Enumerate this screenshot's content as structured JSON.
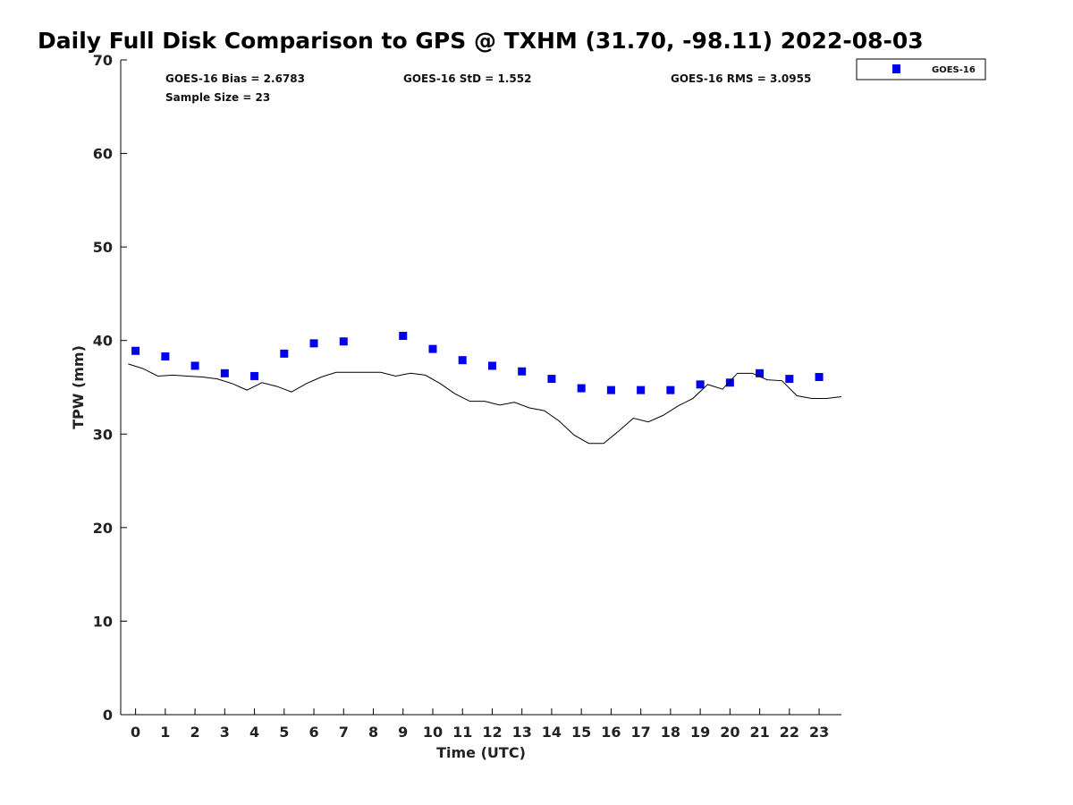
{
  "chart_data": {
    "type": "scatter",
    "title": "Daily Full Disk Comparison to GPS @ TXHM (31.70, -98.11) 2022-08-03",
    "xlabel": "Time (UTC)",
    "ylabel": "TPW (mm)",
    "xlim": [
      -0.5,
      23.75
    ],
    "ylim": [
      0,
      70
    ],
    "xticks": [
      0,
      1,
      2,
      3,
      4,
      5,
      6,
      7,
      8,
      9,
      10,
      11,
      12,
      13,
      14,
      15,
      16,
      17,
      18,
      19,
      20,
      21,
      22,
      23
    ],
    "yticks": [
      0,
      10,
      20,
      30,
      40,
      50,
      60,
      70
    ],
    "grid": false,
    "legend": {
      "position": "outside-top-right",
      "entries": [
        "GOES-16"
      ]
    },
    "stats": {
      "bias": "GOES-16 Bias = 2.6783",
      "std": "GOES-16 StD = 1.552",
      "rms": "GOES-16 RMS = 3.0955",
      "sample": "Sample Size = 23"
    },
    "series": [
      {
        "name": "GOES-16",
        "kind": "scatter",
        "color": "#0000ee",
        "x": [
          0,
          1,
          2,
          3,
          4,
          5,
          6,
          7,
          9,
          10,
          11,
          12,
          13,
          14,
          15,
          16,
          17,
          18,
          19,
          20,
          21,
          22,
          23
        ],
        "y": [
          38.9,
          38.3,
          37.3,
          36.5,
          36.2,
          38.6,
          39.7,
          39.9,
          40.5,
          39.1,
          37.9,
          37.3,
          36.7,
          35.9,
          34.9,
          34.7,
          34.7,
          34.7,
          35.3,
          35.5,
          36.5,
          35.9,
          36.1
        ]
      },
      {
        "name": "GPS",
        "kind": "line",
        "color": "#000000",
        "x": [
          -0.25,
          0.25,
          0.75,
          1.25,
          1.75,
          2.25,
          2.75,
          3.25,
          3.75,
          4.25,
          4.75,
          5.25,
          5.75,
          6.25,
          6.75,
          7.25,
          7.75,
          8.25,
          8.75,
          9.25,
          9.75,
          10.25,
          10.75,
          11.25,
          11.75,
          12.25,
          12.75,
          13.25,
          13.75,
          14.25,
          14.75,
          15.25,
          15.75,
          16.25,
          16.75,
          17.25,
          17.75,
          18.25,
          18.75,
          19.25,
          19.75,
          20.25,
          20.75,
          21.25,
          21.75,
          22.25,
          22.75,
          23.25,
          23.75
        ],
        "y": [
          37.5,
          37.0,
          36.2,
          36.3,
          36.2,
          36.1,
          35.9,
          35.4,
          34.7,
          35.5,
          35.1,
          34.5,
          35.4,
          36.1,
          36.6,
          36.6,
          36.6,
          36.6,
          36.2,
          36.5,
          36.3,
          35.4,
          34.3,
          33.5,
          33.5,
          33.1,
          33.4,
          32.8,
          32.5,
          31.4,
          29.9,
          29.0,
          29.0,
          30.3,
          31.7,
          31.3,
          32.0,
          33.0,
          33.8,
          35.3,
          34.8,
          36.5,
          36.5,
          35.8,
          35.7,
          34.1,
          33.8,
          33.8,
          34.0
        ]
      }
    ]
  }
}
